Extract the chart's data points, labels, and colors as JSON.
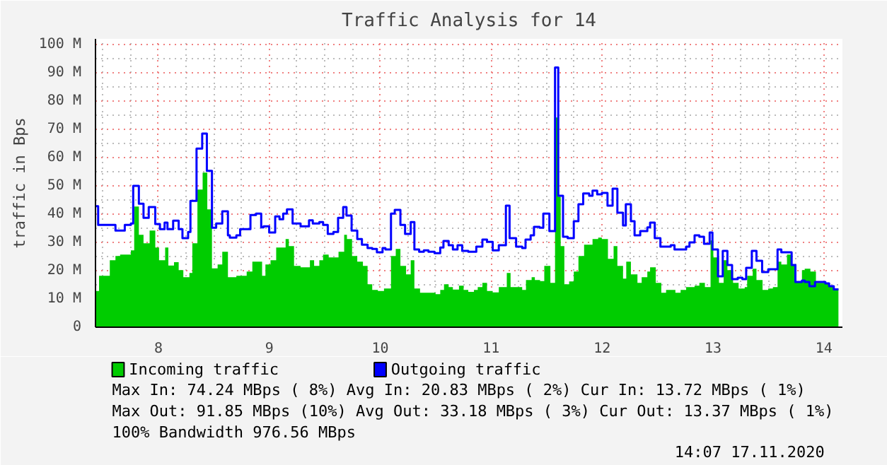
{
  "chart_data": {
    "type": "step",
    "title": "Traffic Analysis for 14",
    "ylabel": "traffic in Bps",
    "xlim": [
      7.433,
      14.167
    ],
    "xticks": [
      8,
      9,
      10,
      11,
      12,
      13,
      14
    ],
    "ylim": [
      0,
      102
    ],
    "yticks": [
      0,
      {
        "value": 10,
        "label": "10 M"
      },
      {
        "value": 20,
        "label": "20 M"
      },
      {
        "value": 30,
        "label": "30 M"
      },
      {
        "value": 40,
        "label": "40 M"
      },
      {
        "value": 50,
        "label": "50 M"
      },
      {
        "value": 60,
        "label": "60 M"
      },
      {
        "value": 70,
        "label": "70 M"
      },
      {
        "value": 80,
        "label": "80 M"
      },
      {
        "value": 90,
        "label": "90 M"
      },
      {
        "value": 100,
        "label": "100 M"
      }
    ],
    "grid": true,
    "legend": "bottom left",
    "series": [
      {
        "name": "Incoming traffic",
        "type": "area",
        "color": "#00cc00",
        "x": [
          7.435,
          7.465,
          7.562,
          7.613,
          7.655,
          7.752,
          7.782,
          7.824,
          7.866,
          7.921,
          7.972,
          8.006,
          8.061,
          8.09,
          8.141,
          8.183,
          8.225,
          8.28,
          8.306,
          8.352,
          8.399,
          8.441,
          8.483,
          8.534,
          8.576,
          8.627,
          8.703,
          8.796,
          8.847,
          8.935,
          8.965,
          9.011,
          9.062,
          9.147,
          9.176,
          9.223,
          9.282,
          9.366,
          9.404,
          9.451,
          9.485,
          9.535,
          9.624,
          9.675,
          9.7,
          9.746,
          9.793,
          9.844,
          9.886,
          9.928,
          9.979,
          10.034,
          10.097,
          10.14,
          10.182,
          10.233,
          10.275,
          10.308,
          10.359,
          10.499,
          10.541,
          10.575,
          10.617,
          10.655,
          10.71,
          10.752,
          10.794,
          10.845,
          10.879,
          10.921,
          10.963,
          11.014,
          11.069,
          11.141,
          11.175,
          11.28,
          11.314,
          11.365,
          11.394,
          11.441,
          11.479,
          11.534,
          11.576,
          11.605,
          11.627,
          11.66,
          11.703,
          11.745,
          11.787,
          11.838,
          11.914,
          11.965,
          11.998,
          12.053,
          12.104,
          12.138,
          12.189,
          12.218,
          12.26,
          12.319,
          12.357,
          12.408,
          12.433,
          12.484,
          12.534,
          12.577,
          12.661,
          12.708,
          12.758,
          12.834,
          12.877,
          12.927,
          12.978,
          13.003,
          13.054,
          13.096,
          13.13,
          13.181,
          13.231,
          13.286,
          13.308,
          13.358,
          13.392,
          13.447,
          13.498,
          13.54,
          13.582,
          13.616,
          13.667,
          13.709,
          13.743,
          13.802,
          13.827,
          13.878,
          13.928,
          14.047,
          14.089,
          14.131
        ],
        "values": [
          12.8,
          18.2,
          23.7,
          25.2,
          25.7,
          27.2,
          42.7,
          32.7,
          29.7,
          34.2,
          28.2,
          23.7,
          28.2,
          21.8,
          23,
          20.2,
          17.7,
          19.2,
          29.7,
          48.7,
          54.7,
          41.7,
          20.8,
          22.2,
          26.7,
          17.7,
          18.2,
          19.7,
          23.2,
          18.2,
          22.2,
          23.7,
          28.2,
          31.2,
          28.7,
          21.7,
          21.2,
          23.7,
          21.7,
          23.7,
          25.7,
          24.7,
          26.7,
          32.7,
          31.2,
          25.2,
          23.2,
          21.7,
          15.2,
          13.2,
          12.8,
          13.7,
          25.2,
          27.7,
          21.7,
          18.7,
          23.7,
          13.7,
          12.2,
          11.7,
          13.2,
          15.2,
          14.2,
          13.3,
          14.7,
          13.2,
          12.5,
          13.2,
          14.2,
          15.7,
          12.8,
          12.3,
          14.2,
          19.2,
          14.2,
          13.2,
          16.7,
          17.7,
          16.7,
          16.3,
          21.7,
          15.7,
          74.2,
          46.2,
          28.7,
          15.2,
          16.2,
          19.7,
          25.2,
          29.2,
          31.2,
          31.7,
          31.2,
          24.2,
          28.7,
          21.7,
          17.2,
          23.2,
          18.7,
          15.7,
          17.7,
          19.7,
          21.2,
          15.7,
          12.2,
          13.2,
          12.2,
          13.2,
          14.2,
          14.7,
          15.7,
          14.2,
          30.7,
          24.7,
          15.7,
          23.7,
          20.2,
          15.7,
          13.7,
          14.2,
          18.2,
          20.7,
          16.7,
          13.2,
          13.7,
          14.2,
          23.2,
          22.2,
          25.7,
          22.2,
          16.2,
          20.2,
          20.7,
          19.7,
          15.7,
          14.7,
          13.7,
          13.7
        ]
      },
      {
        "name": "Outgoing traffic",
        "color": "#0000ff",
        "x": [
          7.435,
          7.457,
          7.613,
          7.697,
          7.752,
          7.773,
          7.824,
          7.866,
          7.913,
          7.972,
          8.014,
          8.056,
          8.082,
          8.133,
          8.183,
          8.217,
          8.268,
          8.289,
          8.344,
          8.395,
          8.437,
          8.483,
          8.521,
          8.576,
          8.627,
          8.644,
          8.703,
          8.737,
          8.83,
          8.88,
          8.927,
          8.948,
          8.999,
          9.053,
          9.092,
          9.125,
          9.159,
          9.21,
          9.282,
          9.358,
          9.392,
          9.451,
          9.485,
          9.527,
          9.578,
          9.62,
          9.666,
          9.696,
          9.742,
          9.793,
          9.835,
          9.886,
          9.928,
          9.97,
          10.021,
          10.047,
          10.097,
          10.131,
          10.182,
          10.224,
          10.275,
          10.308,
          10.351,
          10.393,
          10.435,
          10.49,
          10.541,
          10.57,
          10.617,
          10.655,
          10.697,
          10.739,
          10.794,
          10.866,
          10.921,
          10.963,
          11.014,
          11.069,
          11.133,
          11.166,
          11.225,
          11.28,
          11.31,
          11.356,
          11.386,
          11.437,
          11.47,
          11.525,
          11.576,
          11.605,
          11.648,
          11.69,
          11.745,
          11.787,
          11.83,
          11.884,
          11.914,
          11.956,
          11.998,
          12.049,
          12.095,
          12.138,
          12.189,
          12.214,
          12.26,
          12.293,
          12.344,
          12.408,
          12.433,
          12.475,
          12.526,
          12.619,
          12.653,
          12.758,
          12.788,
          12.834,
          12.877,
          12.919,
          12.97,
          12.995,
          13.045,
          13.088,
          13.13,
          13.172,
          13.223,
          13.265,
          13.299,
          13.35,
          13.392,
          13.443,
          13.498,
          13.582,
          13.616,
          13.709,
          13.743,
          13.802,
          13.827,
          13.869,
          13.92,
          14.013,
          14.047,
          14.089,
          14.131
        ],
        "values": [
          42.8,
          36.2,
          34.2,
          36.2,
          36.7,
          50,
          43.7,
          38.7,
          42.5,
          36.5,
          34.7,
          37,
          34.7,
          37.7,
          34.7,
          31.5,
          33.7,
          44.7,
          63.2,
          68.5,
          55.3,
          35.2,
          36.7,
          41,
          32.5,
          31.7,
          32.5,
          34.7,
          39.7,
          40.2,
          35.3,
          35.7,
          33.5,
          39.2,
          38.2,
          40.2,
          41.7,
          36.7,
          35.7,
          37.8,
          36.7,
          37.2,
          36.2,
          33,
          33.7,
          38.7,
          42.5,
          39.5,
          34.2,
          31.2,
          29.2,
          28,
          27.7,
          26.5,
          28,
          27.5,
          40.2,
          41.5,
          36.2,
          33,
          37.2,
          27.5,
          26.7,
          27.2,
          26.7,
          26.2,
          28.2,
          30.5,
          29,
          27.5,
          29,
          27,
          26.7,
          28.5,
          31,
          30.2,
          27.2,
          29,
          43,
          31.5,
          28.5,
          28,
          31,
          32.5,
          35.5,
          35.2,
          40.2,
          34,
          91.9,
          46.5,
          32,
          31.5,
          37.5,
          43.5,
          47.3,
          46.5,
          48.3,
          47,
          47.5,
          43,
          49,
          40.5,
          36,
          43.5,
          37.5,
          32.5,
          34,
          35.3,
          37,
          31.5,
          28.5,
          29,
          27.5,
          28.5,
          30,
          32.5,
          32,
          29.5,
          33.5,
          27.5,
          18,
          27,
          22,
          17,
          17.5,
          17,
          21,
          27,
          23.5,
          19.5,
          20.5,
          27.5,
          26.5,
          22,
          16,
          16.5,
          16,
          14.5,
          16,
          15.5,
          14.5,
          13.4,
          13.4
        ]
      }
    ],
    "annotations": [
      "Max In:  74.24 MBps ( 8%)  Avg In:  20.83 MBps ( 2%)  Cur In:  13.72 MBps ( 1%)",
      "Max Out: 91.85 MBps (10%)  Avg Out: 33.18 MBps ( 3%)  Cur Out: 13.37 MBps ( 1%)",
      "100% Bandwidth 976.56 MBps",
      "14:07 17.11.2020"
    ]
  }
}
